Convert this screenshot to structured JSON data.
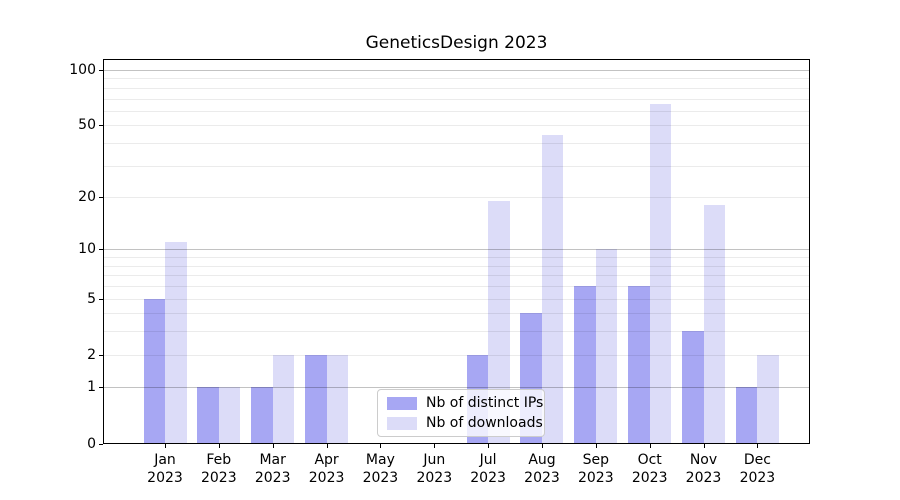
{
  "title": "GeneticsDesign 2023",
  "chart_data": {
    "type": "bar",
    "title": "GeneticsDesign 2023",
    "year": "2023",
    "categories": [
      "Jan",
      "Feb",
      "Mar",
      "Apr",
      "May",
      "Jun",
      "Jul",
      "Aug",
      "Sep",
      "Oct",
      "Nov",
      "Dec"
    ],
    "series": [
      {
        "name": "Nb of distinct IPs",
        "color": "#a7a7f3",
        "values": [
          5,
          1,
          1,
          2,
          0,
          0,
          2,
          4,
          6,
          6,
          3,
          1
        ]
      },
      {
        "name": "Nb of downloads",
        "color": "#dcdcf8",
        "values": [
          11,
          1,
          2,
          2,
          0,
          0,
          19,
          44,
          10,
          65,
          18,
          2
        ]
      }
    ],
    "y_axis": {
      "scale": "log10(1+x)",
      "tick_values": [
        0,
        1,
        2,
        5,
        10,
        20,
        50,
        100
      ],
      "major_gridlines": [
        1,
        10,
        100
      ],
      "minor_gridlines": [
        2,
        3,
        4,
        5,
        6,
        7,
        8,
        9,
        20,
        30,
        40,
        50,
        60,
        70,
        80,
        90
      ],
      "ylim": [
        0,
        115
      ]
    },
    "legend_position": "lower-center",
    "grid": true,
    "colors": {
      "major_grid": "rgba(0,0,0,0.24)",
      "minor_grid": "rgba(0,0,0,0.08)",
      "spine": "#000000"
    }
  }
}
